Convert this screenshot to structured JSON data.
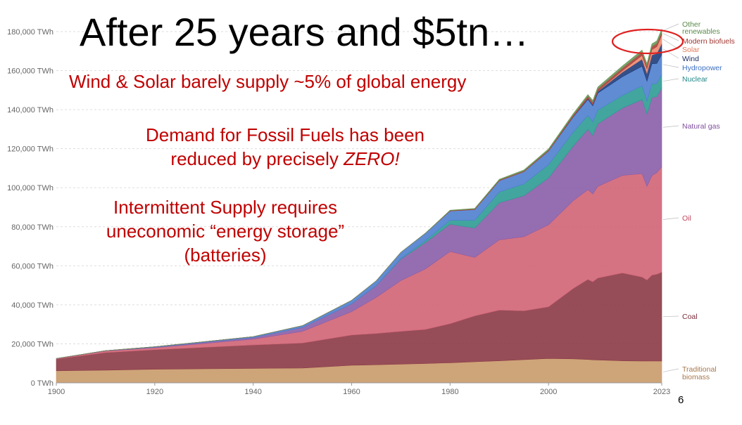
{
  "slide": {
    "title": "After 25 years and $5tn…",
    "annotations": [
      [
        "Wind & Solar barely supply ~5% of global energy"
      ],
      [
        "Demand for Fossil Fuels has been",
        "reduced by precisely ",
        "ZERO!"
      ],
      [
        "Intermittent Supply requires",
        "uneconomic “energy storage”",
        "(batteries)"
      ]
    ],
    "slide_number": "6",
    "highlight_color": "#e02020"
  },
  "chart_data": {
    "type": "area",
    "stacked": true,
    "x": [
      1900,
      1910,
      1920,
      1930,
      1940,
      1950,
      1960,
      1965,
      1970,
      1975,
      1980,
      1985,
      1990,
      1995,
      2000,
      2005,
      2008,
      2009,
      2010,
      2015,
      2019,
      2020,
      2021,
      2022,
      2023
    ],
    "x_ticks": [
      "1900",
      "1920",
      "1940",
      "1960",
      "1980",
      "2000",
      "2023"
    ],
    "y_ticks": [
      "0 TWh",
      "20,000 TWh",
      "40,000 TWh",
      "60,000 TWh",
      "80,000 TWh",
      "100,000 TWh",
      "120,000 TWh",
      "140,000 TWh",
      "160,000 TWh",
      "180,000 TWh"
    ],
    "y_tick_values": [
      0,
      20000,
      40000,
      60000,
      80000,
      100000,
      120000,
      140000,
      160000,
      180000
    ],
    "ylim": [
      0,
      185000
    ],
    "xlim": [
      1900,
      2023
    ],
    "grid": true,
    "series": [
      {
        "name": "Traditional biomass",
        "color": "#c99a6a",
        "label_color": "#a6784e",
        "values": [
          6200,
          6500,
          7000,
          7200,
          7400,
          7600,
          9000,
          9300,
          9600,
          9900,
          10300,
          10800,
          11300,
          11900,
          12500,
          12300,
          12000,
          11800,
          11700,
          11300,
          11200,
          11200,
          11200,
          11200,
          11200
        ]
      },
      {
        "name": "Coal",
        "color": "#8b3a46",
        "label_color": "#7a2c3a",
        "values": [
          6000,
          9000,
          10000,
          11000,
          12000,
          12800,
          15500,
          16000,
          16800,
          17500,
          20000,
          23500,
          26000,
          25000,
          26500,
          36000,
          41000,
          40000,
          42000,
          45000,
          43000,
          41500,
          44000,
          44500,
          45500
        ]
      },
      {
        "name": "Oil",
        "color": "#d06476",
        "label_color": "#c0465c",
        "values": [
          200,
          800,
          1000,
          2000,
          3000,
          6000,
          12000,
          18500,
          26000,
          31000,
          37000,
          30000,
          36000,
          38000,
          42000,
          45000,
          46000,
          45000,
          47000,
          50000,
          53000,
          48000,
          51000,
          52000,
          54000
        ]
      },
      {
        "name": "Natural gas",
        "color": "#8a5ea8",
        "label_color": "#7e4d9c",
        "values": [
          100,
          200,
          300,
          600,
          800,
          2000,
          4000,
          6000,
          11000,
          13500,
          14000,
          15000,
          19000,
          21000,
          24000,
          28000,
          31000,
          30000,
          32000,
          34500,
          38000,
          37000,
          40000,
          39000,
          40500
        ]
      },
      {
        "name": "Nuclear",
        "color": "#2e9c93",
        "label_color": "#22888a",
        "values": [
          0,
          0,
          0,
          0,
          0,
          0,
          0,
          100,
          300,
          1000,
          2000,
          4000,
          5500,
          6000,
          6800,
          7100,
          7000,
          6900,
          7000,
          6500,
          7000,
          6700,
          7000,
          6600,
          6800
        ]
      },
      {
        "name": "Hydropower",
        "color": "#4f7fcf",
        "label_color": "#3c6fc2",
        "values": [
          0,
          0,
          200,
          300,
          500,
          900,
          1800,
          2400,
          3200,
          3800,
          4800,
          5500,
          5800,
          6300,
          7000,
          7800,
          8300,
          8300,
          8800,
          9600,
          10100,
          10200,
          10300,
          10400,
          10300
        ]
      },
      {
        "name": "Wind",
        "color": "#1f3d7a",
        "label_color": "#1a2f66",
        "values": [
          0,
          0,
          0,
          0,
          0,
          0,
          0,
          0,
          0,
          0,
          0,
          0,
          0,
          0,
          80,
          250,
          550,
          700,
          900,
          2300,
          3600,
          4000,
          4500,
          5100,
          5600
        ]
      },
      {
        "name": "Solar",
        "color": "#ee8a70",
        "label_color": "#e07858",
        "values": [
          0,
          0,
          0,
          0,
          0,
          0,
          0,
          0,
          0,
          0,
          0,
          0,
          0,
          0,
          5,
          20,
          60,
          100,
          150,
          800,
          1900,
          2300,
          2800,
          3500,
          4300
        ]
      },
      {
        "name": "Modern biofuels",
        "color": "#a8403a",
        "label_color": "#a03832",
        "values": [
          0,
          0,
          0,
          0,
          0,
          0,
          0,
          0,
          0,
          0,
          200,
          300,
          350,
          400,
          450,
          700,
          1000,
          1050,
          1100,
          1300,
          1500,
          1450,
          1550,
          1600,
          1650
        ]
      },
      {
        "name": "Other renewables",
        "color": "#6a9a5a",
        "label_color": "#5a8a4a",
        "values": [
          0,
          0,
          0,
          0,
          0,
          0,
          0,
          0,
          0,
          100,
          200,
          300,
          400,
          500,
          600,
          750,
          850,
          900,
          950,
          1100,
          1250,
          1300,
          1350,
          1400,
          1450
        ]
      }
    ],
    "legend_placement": "right"
  }
}
